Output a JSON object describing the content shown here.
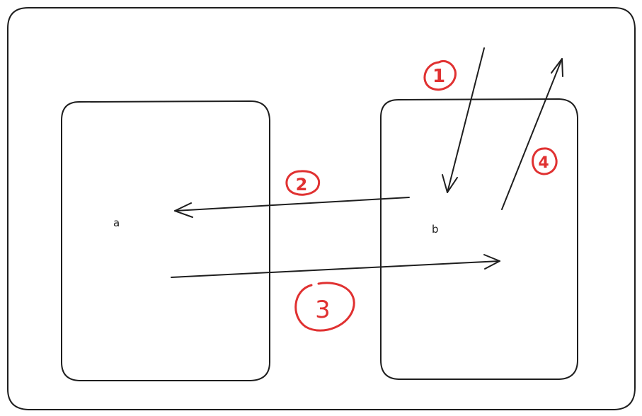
{
  "nodes": {
    "a": {
      "label": "a"
    },
    "b": {
      "label": "b"
    }
  },
  "steps": [
    {
      "number": "1"
    },
    {
      "number": "2"
    },
    {
      "number": "3"
    },
    {
      "number": "4"
    }
  ],
  "colors": {
    "stroke": "#1e1e1e",
    "accent": "#e03131",
    "background": "#ffffff"
  }
}
